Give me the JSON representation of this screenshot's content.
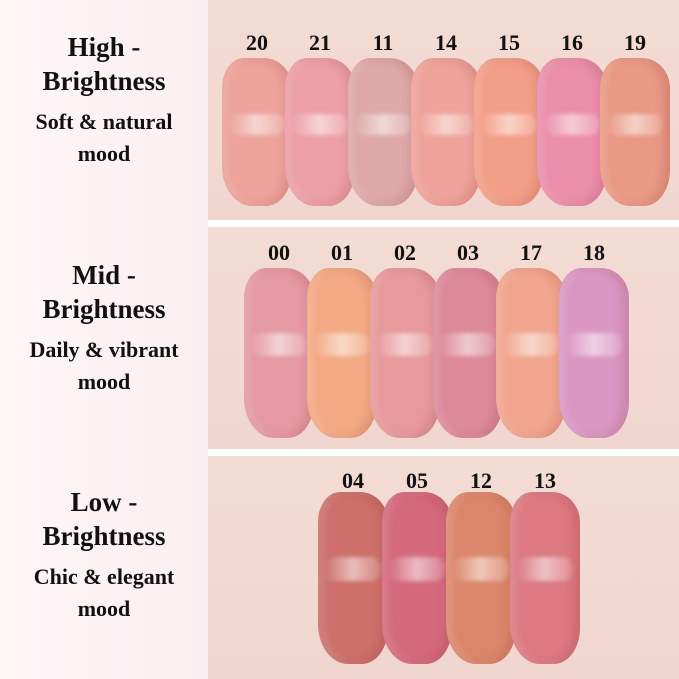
{
  "groups": [
    {
      "title_line1": "High -",
      "title_line2": "Brightness",
      "mood_line1": "Soft & natural",
      "mood_line2": "mood",
      "swatches": [
        {
          "code": "20",
          "color": "#eaa39c"
        },
        {
          "code": "21",
          "color": "#e9a0a6"
        },
        {
          "code": "11",
          "color": "#dba9a8"
        },
        {
          "code": "14",
          "color": "#eba39a"
        },
        {
          "code": "15",
          "color": "#f09f89"
        },
        {
          "code": "16",
          "color": "#e88fab"
        },
        {
          "code": "19",
          "color": "#e69a86"
        }
      ]
    },
    {
      "title_line1": "Mid -",
      "title_line2": "Brightness",
      "mood_line1": "Daily & vibrant",
      "mood_line2": "mood",
      "swatches": [
        {
          "code": "00",
          "color": "#e29aa2"
        },
        {
          "code": "01",
          "color": "#f0aa86"
        },
        {
          "code": "02",
          "color": "#e49a9c"
        },
        {
          "code": "03",
          "color": "#d98a9a"
        },
        {
          "code": "17",
          "color": "#eea690"
        },
        {
          "code": "18",
          "color": "#d898c2"
        }
      ]
    },
    {
      "title_line1": "Low -",
      "title_line2": "Brightness",
      "mood_line1": "Chic & elegant",
      "mood_line2": "mood",
      "swatches": [
        {
          "code": "04",
          "color": "#c9706c"
        },
        {
          "code": "05",
          "color": "#d06a7c"
        },
        {
          "code": "12",
          "color": "#d8876c"
        },
        {
          "code": "13",
          "color": "#d87a82"
        }
      ]
    }
  ]
}
